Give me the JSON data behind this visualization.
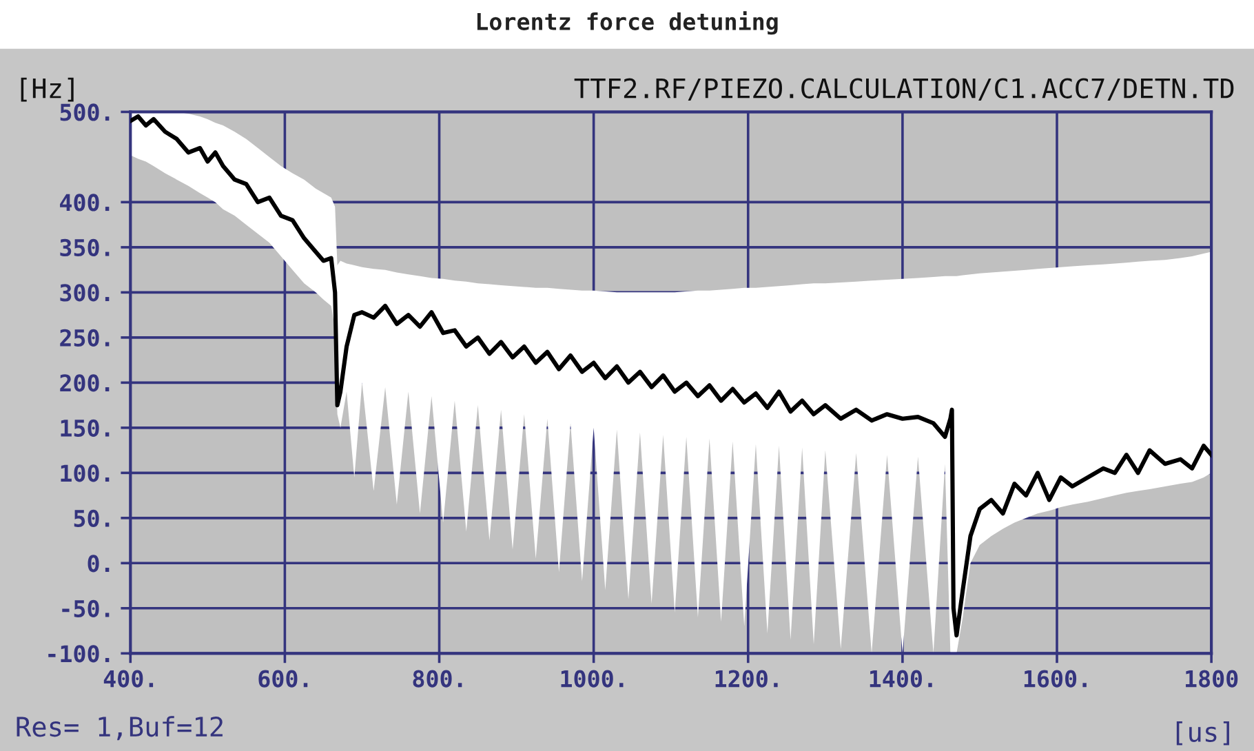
{
  "chart_data": {
    "type": "line",
    "title": "Lorentz force detuning",
    "xlabel": "[us]",
    "ylabel": "[Hz]",
    "annotations": [
      "TTF2.RF/PIEZO.CALCULATION/C1.ACC7/DETN.TD",
      "Res= 1,Buf=12"
    ],
    "xlim": [
      400,
      1800
    ],
    "ylim": [
      -100,
      500
    ],
    "xticks": [
      {
        "value": 400,
        "label": "400."
      },
      {
        "value": 600,
        "label": "600."
      },
      {
        "value": 800,
        "label": "800."
      },
      {
        "value": 1000,
        "label": "1000."
      },
      {
        "value": 1200,
        "label": "1200."
      },
      {
        "value": 1400,
        "label": "1400."
      },
      {
        "value": 1600,
        "label": "1600."
      },
      1800
    ],
    "yticks": [
      {
        "value": -100,
        "label": "-100."
      },
      {
        "value": -50,
        "label": "-50."
      },
      {
        "value": 0,
        "label": "0."
      },
      {
        "value": 50,
        "label": "50."
      },
      {
        "value": 100,
        "label": "100."
      },
      {
        "value": 150,
        "label": "150."
      },
      {
        "value": 200,
        "label": "200."
      },
      {
        "value": 250,
        "label": "250."
      },
      {
        "value": 300,
        "label": "300."
      },
      {
        "value": 350,
        "label": "350."
      },
      {
        "value": 400,
        "label": "400."
      },
      {
        "value": 500,
        "label": "500."
      }
    ],
    "grid": true,
    "legend": false,
    "marker": "none",
    "line_style": "solid",
    "series": [
      {
        "color": "#000000",
        "x": [
          400,
          410,
          420,
          430,
          445,
          460,
          475,
          490,
          500,
          510,
          520,
          535,
          550,
          565,
          580,
          595,
          610,
          625,
          640,
          650,
          660,
          665,
          668,
          672,
          680,
          690,
          700,
          715,
          730,
          745,
          760,
          775,
          790,
          805,
          820,
          835,
          850,
          865,
          880,
          895,
          910,
          925,
          940,
          955,
          970,
          985,
          1000,
          1015,
          1030,
          1045,
          1060,
          1075,
          1090,
          1105,
          1120,
          1135,
          1150,
          1165,
          1180,
          1195,
          1210,
          1225,
          1240,
          1255,
          1270,
          1285,
          1300,
          1320,
          1340,
          1360,
          1380,
          1400,
          1420,
          1440,
          1455,
          1462,
          1464,
          1466,
          1470,
          1478,
          1488,
          1500,
          1515,
          1530,
          1545,
          1560,
          1575,
          1590,
          1605,
          1620,
          1640,
          1660,
          1675,
          1690,
          1705,
          1720,
          1740,
          1760,
          1775,
          1790,
          1800
        ],
        "values": [
          490,
          495,
          485,
          492,
          478,
          470,
          455,
          460,
          445,
          455,
          440,
          425,
          420,
          400,
          405,
          385,
          380,
          360,
          345,
          335,
          338,
          300,
          175,
          190,
          240,
          275,
          278,
          272,
          285,
          265,
          275,
          262,
          278,
          255,
          258,
          240,
          250,
          232,
          245,
          228,
          240,
          222,
          234,
          215,
          230,
          212,
          222,
          205,
          218,
          200,
          212,
          195,
          208,
          190,
          200,
          185,
          197,
          180,
          193,
          178,
          188,
          172,
          190,
          168,
          180,
          165,
          175,
          160,
          170,
          158,
          165,
          160,
          162,
          155,
          140,
          160,
          170,
          -50,
          -80,
          -30,
          30,
          60,
          70,
          55,
          88,
          75,
          100,
          70,
          95,
          85,
          95,
          105,
          100,
          120,
          100,
          125,
          110,
          115,
          105,
          130,
          120
        ],
        "lower": [
          452,
          448,
          445,
          440,
          432,
          425,
          418,
          410,
          405,
          400,
          392,
          385,
          375,
          365,
          355,
          340,
          325,
          310,
          300,
          292,
          285,
          260,
          165,
          150,
          190,
          95,
          200,
          80,
          195,
          65,
          190,
          55,
          185,
          45,
          180,
          35,
          175,
          25,
          170,
          15,
          165,
          5,
          160,
          -10,
          155,
          -20,
          150,
          -30,
          148,
          -40,
          145,
          -45,
          142,
          -55,
          140,
          -60,
          138,
          -65,
          135,
          -70,
          132,
          -78,
          130,
          -85,
          128,
          -90,
          125,
          -95,
          122,
          -100,
          120,
          -100,
          118,
          -100,
          110,
          -100,
          -100,
          -100,
          -100,
          -60,
          0,
          20,
          30,
          38,
          45,
          50,
          55,
          58,
          62,
          65,
          68,
          72,
          75,
          78,
          80,
          82,
          85,
          88,
          90,
          95,
          100
        ],
        "upper": [
          500,
          500,
          500,
          500,
          500,
          500,
          498,
          495,
          492,
          488,
          485,
          478,
          470,
          460,
          450,
          440,
          432,
          425,
          415,
          410,
          405,
          395,
          330,
          335,
          332,
          330,
          328,
          326,
          325,
          322,
          320,
          318,
          316,
          315,
          313,
          312,
          310,
          309,
          308,
          307,
          306,
          305,
          305,
          304,
          303,
          302,
          302,
          301,
          300,
          300,
          300,
          300,
          300,
          300,
          301,
          302,
          302,
          303,
          304,
          305,
          305,
          306,
          307,
          308,
          309,
          310,
          310,
          311,
          312,
          313,
          314,
          315,
          316,
          317,
          318,
          318,
          318,
          318,
          318,
          319,
          320,
          321,
          322,
          323,
          324,
          325,
          326,
          327,
          328,
          329,
          330,
          331,
          332,
          333,
          334,
          335,
          336,
          338,
          340,
          343,
          345
        ]
      }
    ]
  }
}
